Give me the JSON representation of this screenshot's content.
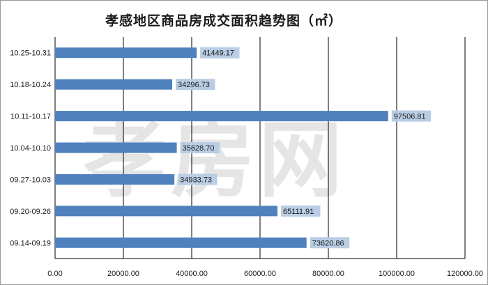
{
  "chart_data": {
    "type": "bar",
    "orientation": "horizontal",
    "title": "孝感地区商品房成交面积趋势图（㎡）",
    "categories": [
      "10.25-10.31",
      "10.18-10.24",
      "10.11-10.17",
      "10.04-10.10",
      "09.27-10.03",
      "09.20-09.26",
      "09.14-09.19"
    ],
    "values": [
      41449.17,
      34296.73,
      97506.81,
      35628.7,
      34933.73,
      65111.91,
      73620.86
    ],
    "data_labels": [
      "41449.17",
      "34296.73",
      "97506.81",
      "35628.70",
      "34933.73",
      "65111.91",
      "73620.86"
    ],
    "xlim": [
      0,
      120000
    ],
    "ticks": [
      0,
      20000,
      40000,
      60000,
      80000,
      100000,
      120000
    ],
    "tick_labels": [
      "0.00",
      "20000.00",
      "40000.00",
      "60000.00",
      "80000.00",
      "100000.00",
      "120000.00"
    ],
    "grid": true,
    "legend": "none",
    "colors": {
      "bar": "#4f81bd",
      "label_box": "#b9cde4",
      "grid": "#000000"
    }
  },
  "watermark_text": "孝房网"
}
